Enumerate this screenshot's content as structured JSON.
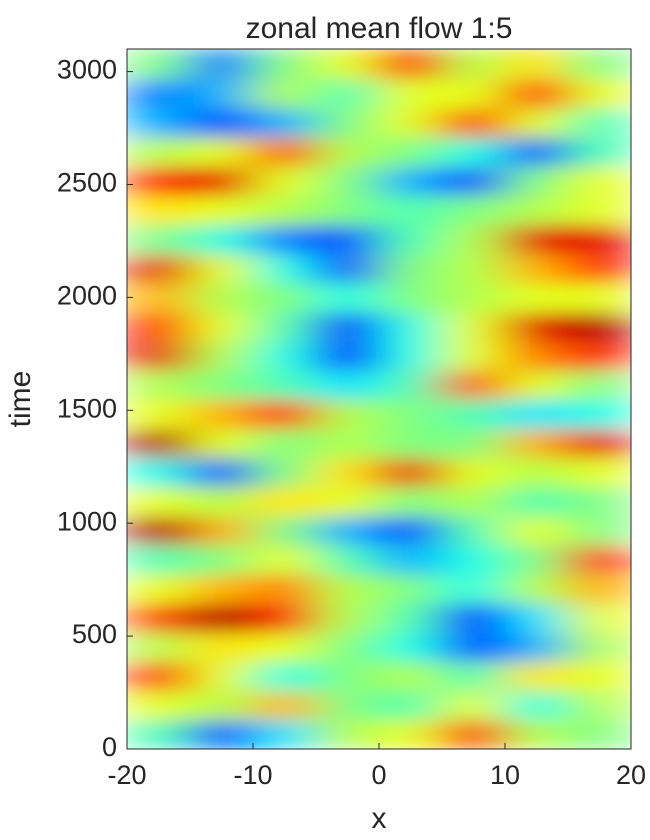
{
  "chart_data": {
    "type": "heatmap",
    "title": "zonal mean flow  1:5",
    "x_label": "x",
    "y_label": "time",
    "xlim": [
      -20,
      20
    ],
    "ylim": [
      0,
      3100
    ],
    "xticks": [
      -20,
      -10,
      0,
      10,
      20
    ],
    "yticks": [
      0,
      500,
      1000,
      1500,
      2000,
      2500,
      3000
    ],
    "colormap": "jet",
    "x_bins": [
      -20,
      -15,
      -10,
      -5,
      0,
      5,
      10,
      15,
      20
    ],
    "y_bins": [
      0,
      129,
      258,
      387,
      516,
      645,
      774,
      903,
      1032,
      1161,
      1290,
      1419,
      1548,
      1677,
      1806,
      1935,
      2064,
      2193,
      2322,
      2451,
      2580,
      2709,
      2838,
      2967,
      3100
    ],
    "z": [
      [
        0.45,
        0.2,
        0.35,
        0.55,
        0.6,
        0.85,
        0.55,
        0.5
      ],
      [
        0.6,
        0.55,
        0.7,
        0.5,
        0.45,
        0.6,
        0.4,
        0.55
      ],
      [
        0.85,
        0.6,
        0.4,
        0.5,
        0.55,
        0.45,
        0.65,
        0.6
      ],
      [
        0.55,
        0.65,
        0.6,
        0.5,
        0.4,
        0.2,
        0.3,
        0.55
      ],
      [
        0.8,
        0.95,
        0.85,
        0.55,
        0.45,
        0.15,
        0.35,
        0.6
      ],
      [
        0.6,
        0.7,
        0.75,
        0.55,
        0.5,
        0.4,
        0.55,
        0.7
      ],
      [
        0.45,
        0.5,
        0.6,
        0.45,
        0.3,
        0.4,
        0.5,
        0.85
      ],
      [
        0.95,
        0.7,
        0.5,
        0.3,
        0.2,
        0.45,
        0.6,
        0.5
      ],
      [
        0.6,
        0.55,
        0.65,
        0.6,
        0.5,
        0.55,
        0.45,
        0.5
      ],
      [
        0.4,
        0.2,
        0.5,
        0.65,
        0.9,
        0.6,
        0.55,
        0.6
      ],
      [
        0.95,
        0.6,
        0.5,
        0.55,
        0.5,
        0.5,
        0.7,
        0.9
      ],
      [
        0.6,
        0.7,
        0.85,
        0.55,
        0.5,
        0.45,
        0.35,
        0.4
      ],
      [
        0.55,
        0.5,
        0.45,
        0.35,
        0.45,
        0.8,
        0.6,
        0.5
      ],
      [
        0.9,
        0.55,
        0.4,
        0.15,
        0.4,
        0.6,
        0.75,
        0.85
      ],
      [
        0.85,
        0.6,
        0.45,
        0.15,
        0.4,
        0.6,
        0.9,
        0.95
      ],
      [
        0.7,
        0.55,
        0.5,
        0.4,
        0.5,
        0.55,
        0.6,
        0.6
      ],
      [
        0.9,
        0.6,
        0.4,
        0.2,
        0.5,
        0.55,
        0.7,
        0.85
      ],
      [
        0.5,
        0.4,
        0.25,
        0.2,
        0.45,
        0.55,
        0.9,
        0.9
      ],
      [
        0.65,
        0.6,
        0.55,
        0.5,
        0.45,
        0.5,
        0.55,
        0.6
      ],
      [
        0.85,
        0.9,
        0.6,
        0.5,
        0.3,
        0.2,
        0.5,
        0.6
      ],
      [
        0.55,
        0.6,
        0.8,
        0.55,
        0.5,
        0.4,
        0.2,
        0.45
      ],
      [
        0.3,
        0.2,
        0.3,
        0.5,
        0.6,
        0.85,
        0.6,
        0.45
      ],
      [
        0.25,
        0.3,
        0.55,
        0.45,
        0.6,
        0.6,
        0.85,
        0.6
      ],
      [
        0.5,
        0.25,
        0.5,
        0.6,
        0.85,
        0.55,
        0.65,
        0.5
      ]
    ]
  }
}
